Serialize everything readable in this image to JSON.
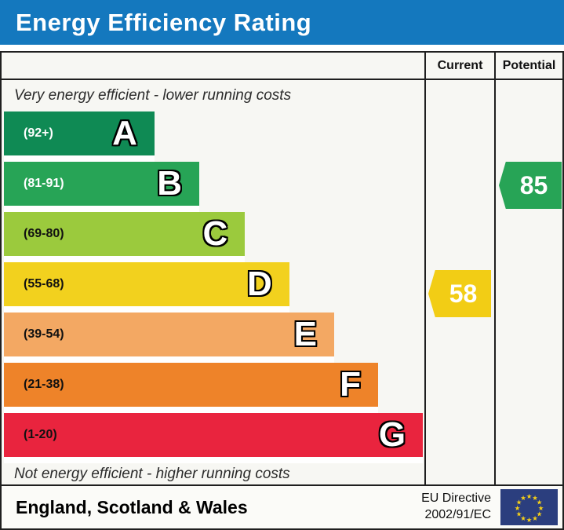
{
  "title": "Energy Efficiency Rating",
  "header": {
    "current": "Current",
    "potential": "Potential"
  },
  "notes": {
    "top": "Very energy efficient - lower running costs",
    "bottom": "Not energy efficient - higher running costs"
  },
  "chart_data": {
    "type": "bar",
    "title": "Energy Efficiency Rating",
    "orientation": "horizontal",
    "bands": [
      {
        "letter": "A",
        "range_label": "(92+)",
        "range_min": 92,
        "range_max": 100,
        "color": "#0f8a54",
        "label_color": "#ffffff",
        "bar_width_pct": 35.6
      },
      {
        "letter": "B",
        "range_label": "(81-91)",
        "range_min": 81,
        "range_max": 91,
        "color": "#27a456",
        "label_color": "#ffffff",
        "bar_width_pct": 46.2
      },
      {
        "letter": "C",
        "range_label": "(69-80)",
        "range_min": 69,
        "range_max": 80,
        "color": "#9bca3d",
        "label_color": "#111111",
        "bar_width_pct": 57.0
      },
      {
        "letter": "D",
        "range_label": "(55-68)",
        "range_min": 55,
        "range_max": 68,
        "color": "#f2d11e",
        "label_color": "#111111",
        "bar_width_pct": 67.5
      },
      {
        "letter": "E",
        "range_label": "(39-54)",
        "range_min": 39,
        "range_max": 54,
        "color": "#f3a863",
        "label_color": "#111111",
        "bar_width_pct": 78.1
      },
      {
        "letter": "F",
        "range_label": "(21-38)",
        "range_min": 21,
        "range_max": 38,
        "color": "#ee8329",
        "label_color": "#111111",
        "bar_width_pct": 88.5
      },
      {
        "letter": "G",
        "range_label": "(1-20)",
        "range_min": 1,
        "range_max": 20,
        "color": "#e9243e",
        "label_color": "#111111",
        "bar_width_pct": 99.1
      }
    ],
    "markers": {
      "current": {
        "value": 58,
        "band": "D",
        "color": "#f2cd15"
      },
      "potential": {
        "value": 85,
        "band": "B",
        "color": "#27a456"
      }
    }
  },
  "footer": {
    "region": "England, Scotland & Wales",
    "directive_line1": "EU Directive",
    "directive_line2": "2002/91/EC",
    "flag_icon": "eu-flag"
  },
  "colors": {
    "title_bar": "#1478be",
    "flag_blue": "#2b3e7e",
    "flag_star": "#f7d117",
    "border": "#1f1f1f"
  }
}
